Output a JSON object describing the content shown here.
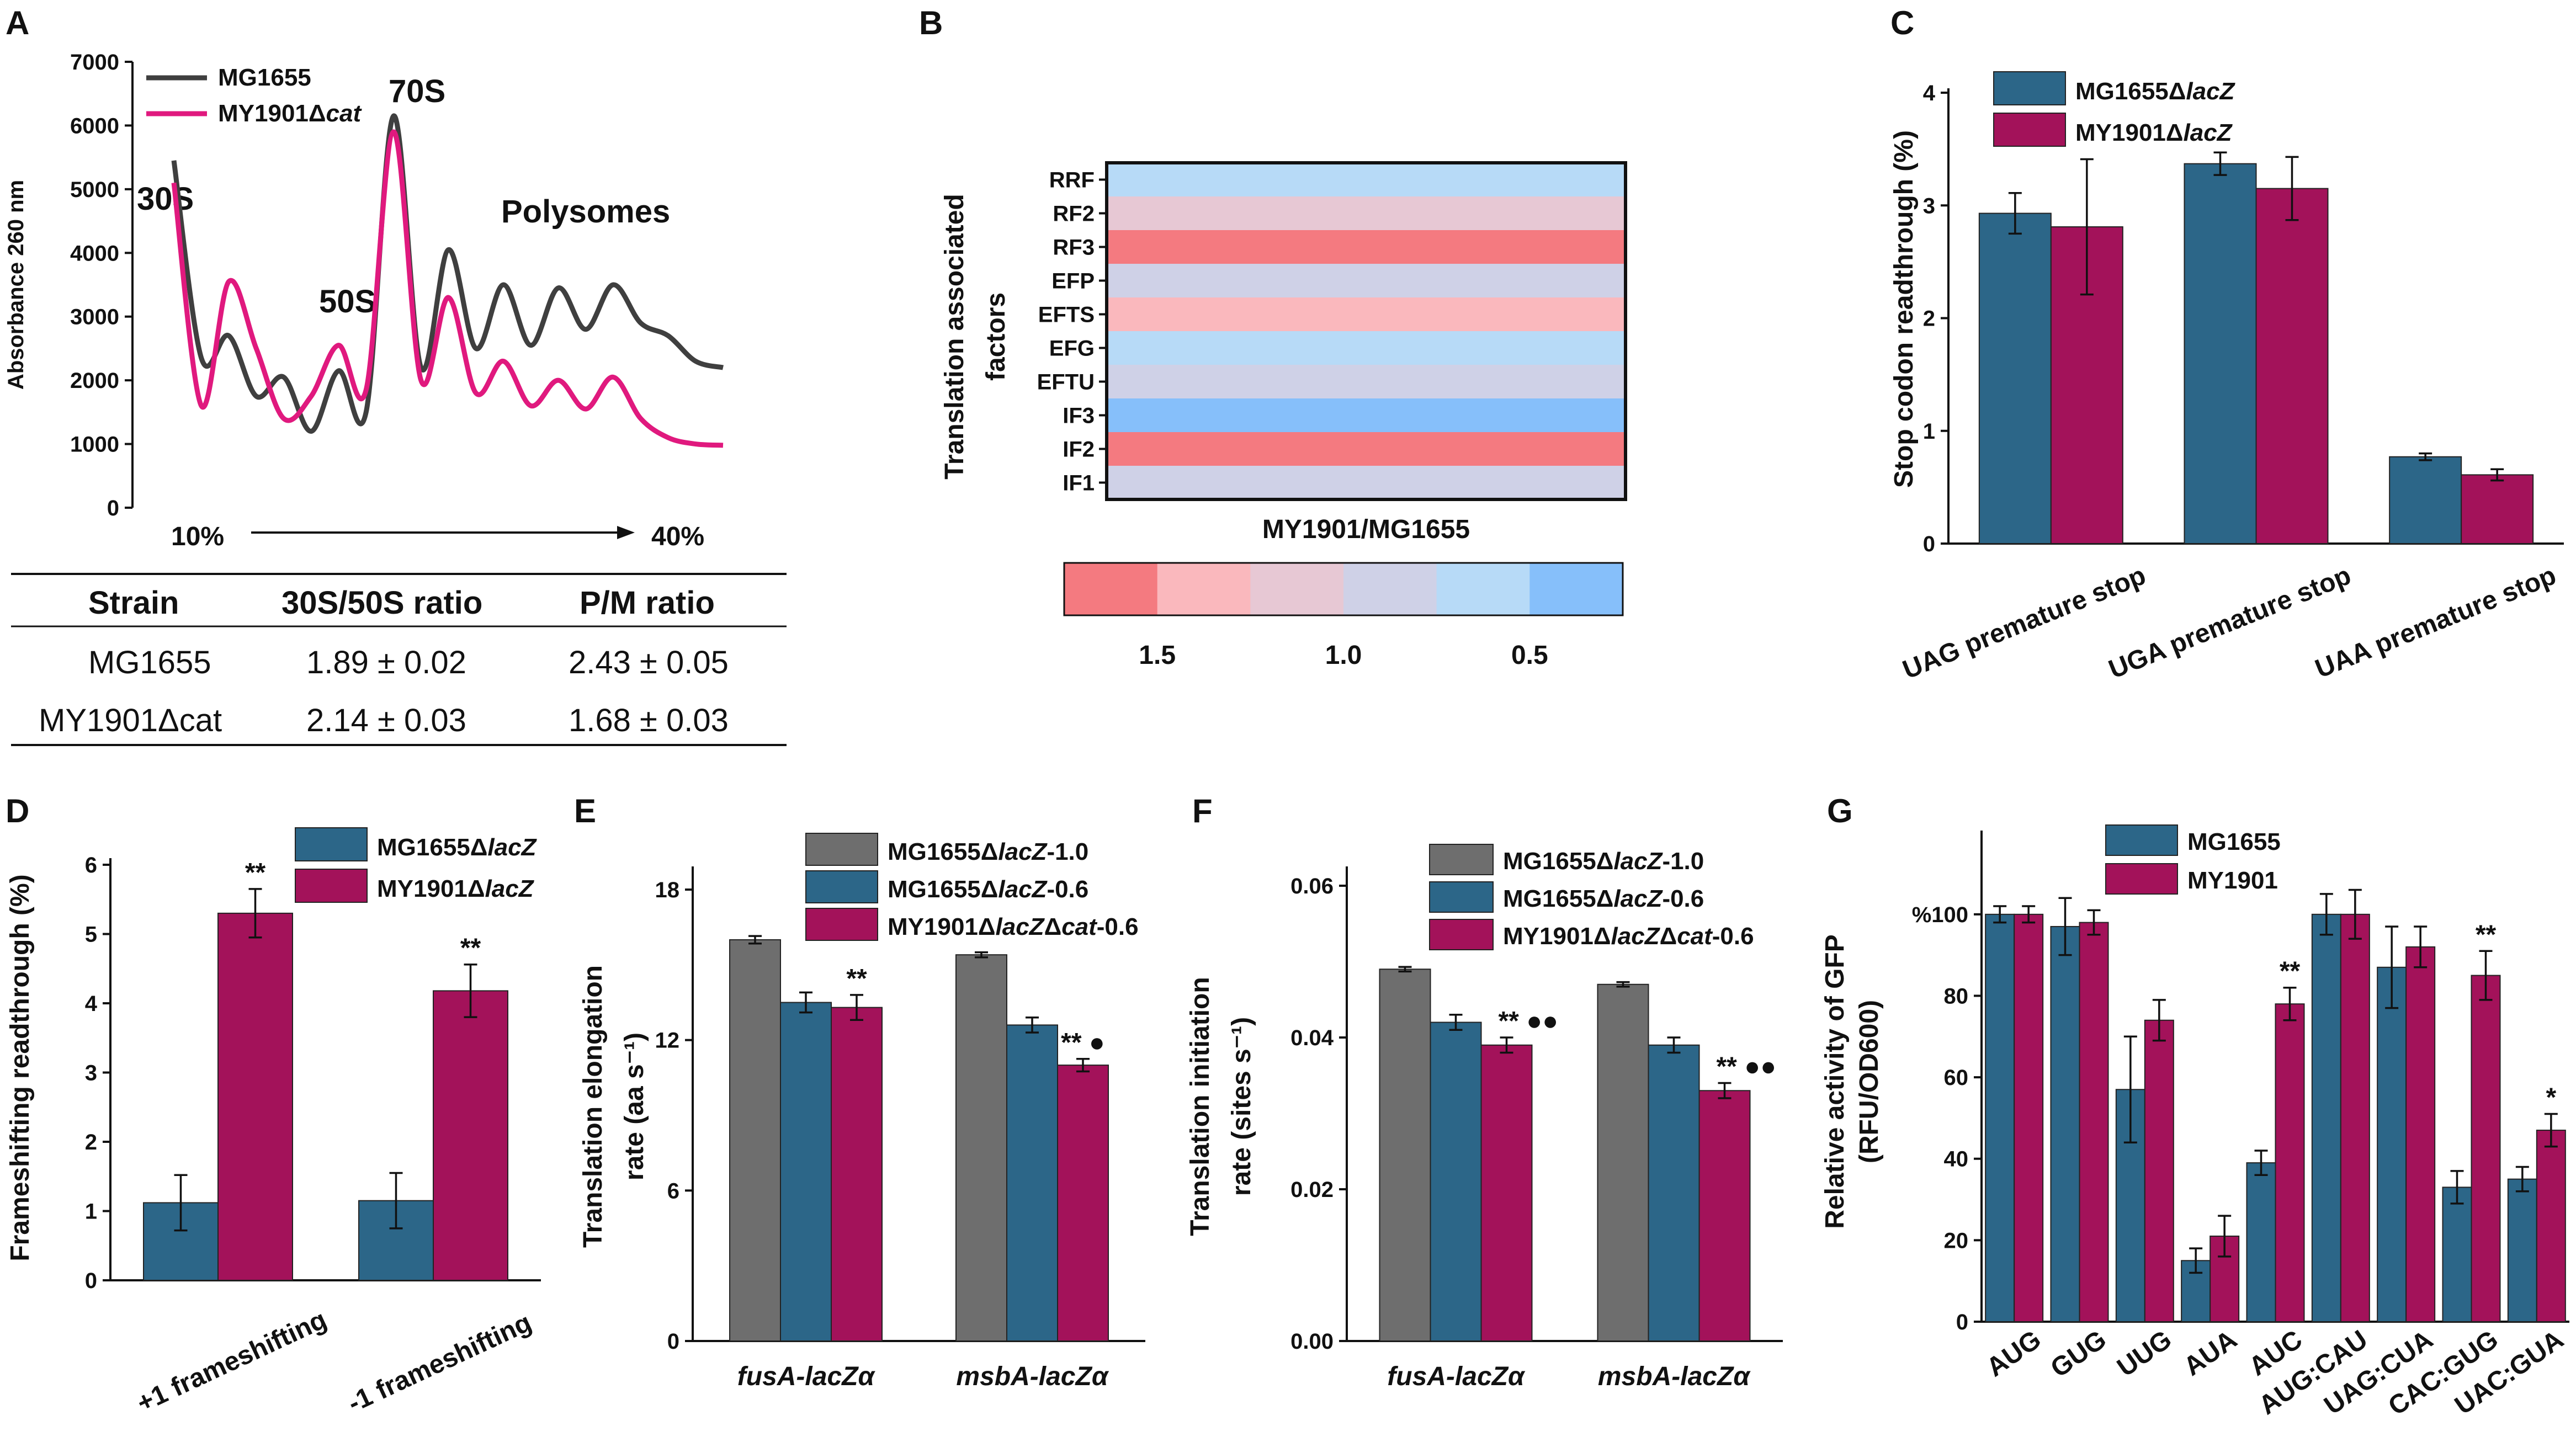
{
  "colors": {
    "grey": "#6e6e6e",
    "teal": "#2c6688",
    "magenta": "#a3125a",
    "pink": "#e0197e",
    "dark": "#3f3f3f"
  },
  "panels": {
    "A": {
      "label": "A",
      "gradient_start": "10%",
      "gradient_end": "40%",
      "peaks": [
        "70S",
        "30S",
        "50S",
        "Polysomes"
      ]
    },
    "B": {
      "label": "B"
    },
    "C": {
      "label": "C"
    },
    "D": {
      "label": "D"
    },
    "E": {
      "label": "E"
    },
    "F": {
      "label": "F"
    },
    "G": {
      "label": "G"
    }
  },
  "table": {
    "headers": [
      "Strain",
      "30S/50S ratio",
      "P/M ratio"
    ],
    "rows": [
      [
        "MG1655",
        "1.89 ± 0.02",
        "2.43 ± 0.05"
      ],
      [
        "MY1901Δcat",
        "2.14 ± 0.03",
        "1.68 ± 0.03"
      ]
    ]
  },
  "chart_data": [
    {
      "id": "A",
      "type": "line",
      "title": "",
      "xlabel": "",
      "ylabel": "Absorbance 260 nm",
      "ylim": [
        0,
        7000
      ],
      "yticks": [
        0,
        1000,
        2000,
        3000,
        4000,
        5000,
        6000,
        7000
      ],
      "series": [
        {
          "name": "MG1655",
          "x": [
            0,
            0.05,
            0.1,
            0.15,
            0.2,
            0.25,
            0.3,
            0.35,
            0.4,
            0.45,
            0.5,
            0.55,
            0.6,
            0.65,
            0.7,
            0.75,
            0.8,
            0.85,
            0.9,
            0.95,
            1
          ],
          "values": [
            5450,
            2350,
            2700,
            1750,
            2050,
            1200,
            2150,
            1500,
            6150,
            2200,
            4050,
            2500,
            3500,
            2550,
            3450,
            2800,
            3500,
            2900,
            2700,
            2300,
            2200
          ]
        },
        {
          "name": "MY1901Δcat",
          "x": [
            0,
            0.05,
            0.1,
            0.15,
            0.2,
            0.25,
            0.3,
            0.35,
            0.4,
            0.45,
            0.5,
            0.55,
            0.6,
            0.65,
            0.7,
            0.75,
            0.8,
            0.85,
            0.9,
            0.95,
            1
          ],
          "values": [
            5100,
            1600,
            3550,
            2500,
            1400,
            1750,
            2550,
            1850,
            5900,
            2000,
            3300,
            1800,
            2300,
            1600,
            2000,
            1550,
            2050,
            1400,
            1100,
            1000,
            980
          ]
        }
      ]
    },
    {
      "id": "B",
      "type": "heatmap",
      "title": "",
      "xlabel": "MY1901/MG1655",
      "ylabel": "Translation associated factors",
      "rows": [
        "RRF",
        "RF2",
        "RF3",
        "EFP",
        "EFTS",
        "EFG",
        "EFTU",
        "IF3",
        "IF2",
        "IF1"
      ],
      "values": [
        0.63,
        1.13,
        1.55,
        0.95,
        1.37,
        0.68,
        0.95,
        0.5,
        1.6,
        0.93
      ],
      "colorbar": {
        "colors": [
          "#f47a80",
          "#fab8bd",
          "#e7c8d4",
          "#cfd1e7",
          "#b7daf7",
          "#86bffa"
        ],
        "ticks": [
          1.5,
          1.0,
          0.5
        ],
        "range": [
          1.75,
          0.25
        ]
      }
    },
    {
      "id": "C",
      "type": "bar",
      "title": "",
      "xlabel": "",
      "ylabel": "Stop codon readthrough (%)",
      "ylim": [
        0,
        4
      ],
      "yticks": [
        0,
        1,
        2,
        3,
        4
      ],
      "categories": [
        "UAG premature stop",
        "UGA premature stop",
        "UAA premature stop"
      ],
      "series": [
        {
          "name": "MG1655ΔlacZ",
          "values": [
            2.93,
            3.37,
            0.77
          ],
          "errors": [
            0.18,
            0.1,
            0.03
          ]
        },
        {
          "name": "MY1901ΔlacZ",
          "values": [
            2.81,
            3.15,
            0.61
          ],
          "errors": [
            0.6,
            0.28,
            0.05
          ]
        }
      ]
    },
    {
      "id": "D",
      "type": "bar",
      "title": "",
      "xlabel": "",
      "ylabel": "Frameshifting readthrough (%)",
      "ylim": [
        0,
        6
      ],
      "yticks": [
        0,
        1,
        2,
        3,
        4,
        5,
        6
      ],
      "categories": [
        "+1 frameshifting",
        "-1 frameshifting"
      ],
      "series": [
        {
          "name": "MG1655ΔlacZ",
          "values": [
            1.12,
            1.15
          ],
          "errors": [
            0.4,
            0.4
          ]
        },
        {
          "name": "MY1901ΔlacZ",
          "values": [
            5.3,
            4.18
          ],
          "errors": [
            0.35,
            0.38
          ]
        }
      ],
      "annotations": [
        {
          "series": 1,
          "index": 0,
          "text": "**"
        },
        {
          "series": 1,
          "index": 1,
          "text": "**"
        }
      ]
    },
    {
      "id": "E",
      "type": "bar",
      "title": "",
      "xlabel": "",
      "ylabel": "Translation elongation rate (aa s⁻¹)",
      "ylim": [
        0,
        18
      ],
      "yticks": [
        0,
        6,
        12,
        18
      ],
      "categories": [
        "fusA-lacZα",
        "msbA-lacZα"
      ],
      "series": [
        {
          "name": "MG1655ΔlacZ-1.0",
          "values": [
            16.0,
            15.4
          ],
          "errors": [
            0.15,
            0.1
          ]
        },
        {
          "name": "MG1655ΔlacZ-0.6",
          "values": [
            13.5,
            12.6
          ],
          "errors": [
            0.4,
            0.3
          ]
        },
        {
          "name": "MY1901ΔlacZΔcat-0.6",
          "values": [
            13.3,
            11.0
          ],
          "errors": [
            0.5,
            0.25
          ]
        }
      ],
      "annotations": [
        {
          "series": 2,
          "index": 0,
          "text": "**"
        },
        {
          "series": 2,
          "index": 1,
          "text": "** ●"
        }
      ]
    },
    {
      "id": "F",
      "type": "bar",
      "title": "",
      "xlabel": "",
      "ylabel": "Translation initiation rate (sites s⁻¹)",
      "ylim": [
        0,
        0.06
      ],
      "yticks": [
        0.0,
        0.02,
        0.04,
        0.06
      ],
      "ytick_labels": [
        "0.00",
        "0.02",
        "0.04",
        "0.06"
      ],
      "categories": [
        "fusA-lacZα",
        "msbA-lacZα"
      ],
      "series": [
        {
          "name": "MG1655ΔlacZ-1.0",
          "values": [
            0.049,
            0.047
          ],
          "errors": [
            0.0003,
            0.0003
          ]
        },
        {
          "name": "MG1655ΔlacZ-0.6",
          "values": [
            0.042,
            0.039
          ],
          "errors": [
            0.001,
            0.001
          ]
        },
        {
          "name": "MY1901ΔlacZΔcat-0.6",
          "values": [
            0.039,
            0.033
          ],
          "errors": [
            0.001,
            0.001
          ]
        }
      ],
      "annotations": [
        {
          "series": 2,
          "index": 0,
          "text": "** ●●"
        },
        {
          "series": 2,
          "index": 1,
          "text": "** ●●"
        }
      ]
    },
    {
      "id": "G",
      "type": "bar",
      "title": "",
      "xlabel": "",
      "ylabel": "Relative activity of GFP (RFU/OD600)",
      "ylim": [
        0,
        110
      ],
      "yticks": [
        0,
        20,
        40,
        60,
        80,
        100
      ],
      "ytick_labels": [
        "0",
        "20",
        "40",
        "60",
        "80",
        "%100"
      ],
      "categories": [
        "AUG",
        "GUG",
        "UUG",
        "AUA",
        "AUC",
        "AUG:CAU",
        "UAG:CUA",
        "CAC:GUG",
        "UAC:GUA"
      ],
      "series": [
        {
          "name": "MG1655",
          "values": [
            100,
            97,
            57,
            15,
            39,
            100,
            87,
            33,
            35
          ],
          "errors": [
            2,
            7,
            13,
            3,
            3,
            5,
            10,
            4,
            3
          ]
        },
        {
          "name": "MY1901",
          "values": [
            100,
            98,
            74,
            21,
            78,
            100,
            92,
            85,
            47
          ],
          "errors": [
            2,
            3,
            5,
            5,
            4,
            6,
            5,
            6,
            4
          ]
        }
      ],
      "annotations": [
        {
          "series": 1,
          "index": 4,
          "text": "**"
        },
        {
          "series": 1,
          "index": 7,
          "text": "**"
        },
        {
          "series": 1,
          "index": 8,
          "text": "*"
        }
      ]
    }
  ]
}
